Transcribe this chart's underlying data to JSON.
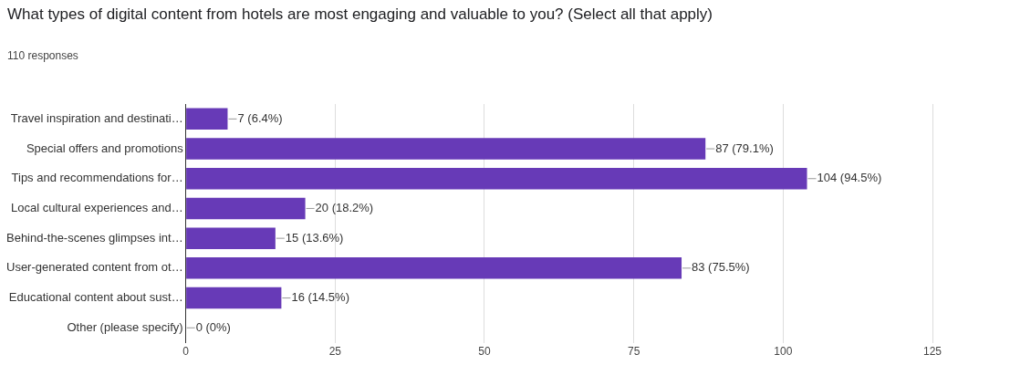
{
  "chart_data": {
    "type": "bar",
    "orientation": "horizontal",
    "title": "What types of digital content from hotels are most engaging and valuable to you? (Select all that apply)",
    "subtitle": "110 responses",
    "categories": [
      "Travel inspiration and destinati…",
      "Special offers and promotions",
      "Tips and recommendations for…",
      "Local cultural experiences and…",
      "Behind-the-scenes glimpses int…",
      "User-generated content from ot…",
      "Educational content about sust…",
      "Other (please specify)"
    ],
    "values": [
      7,
      87,
      104,
      20,
      15,
      83,
      16,
      0
    ],
    "value_labels": [
      "7 (6.4%)",
      "87 (79.1%)",
      "104 (94.5%)",
      "20 (18.2%)",
      "15 (13.6%)",
      "83 (75.5%)",
      "16 (14.5%)",
      "0 (0%)"
    ],
    "color": "#673ab7",
    "xlim": [
      0,
      125
    ],
    "xticks": [
      0,
      25,
      50,
      75,
      100,
      125
    ],
    "grid": "x",
    "legend": false
  }
}
